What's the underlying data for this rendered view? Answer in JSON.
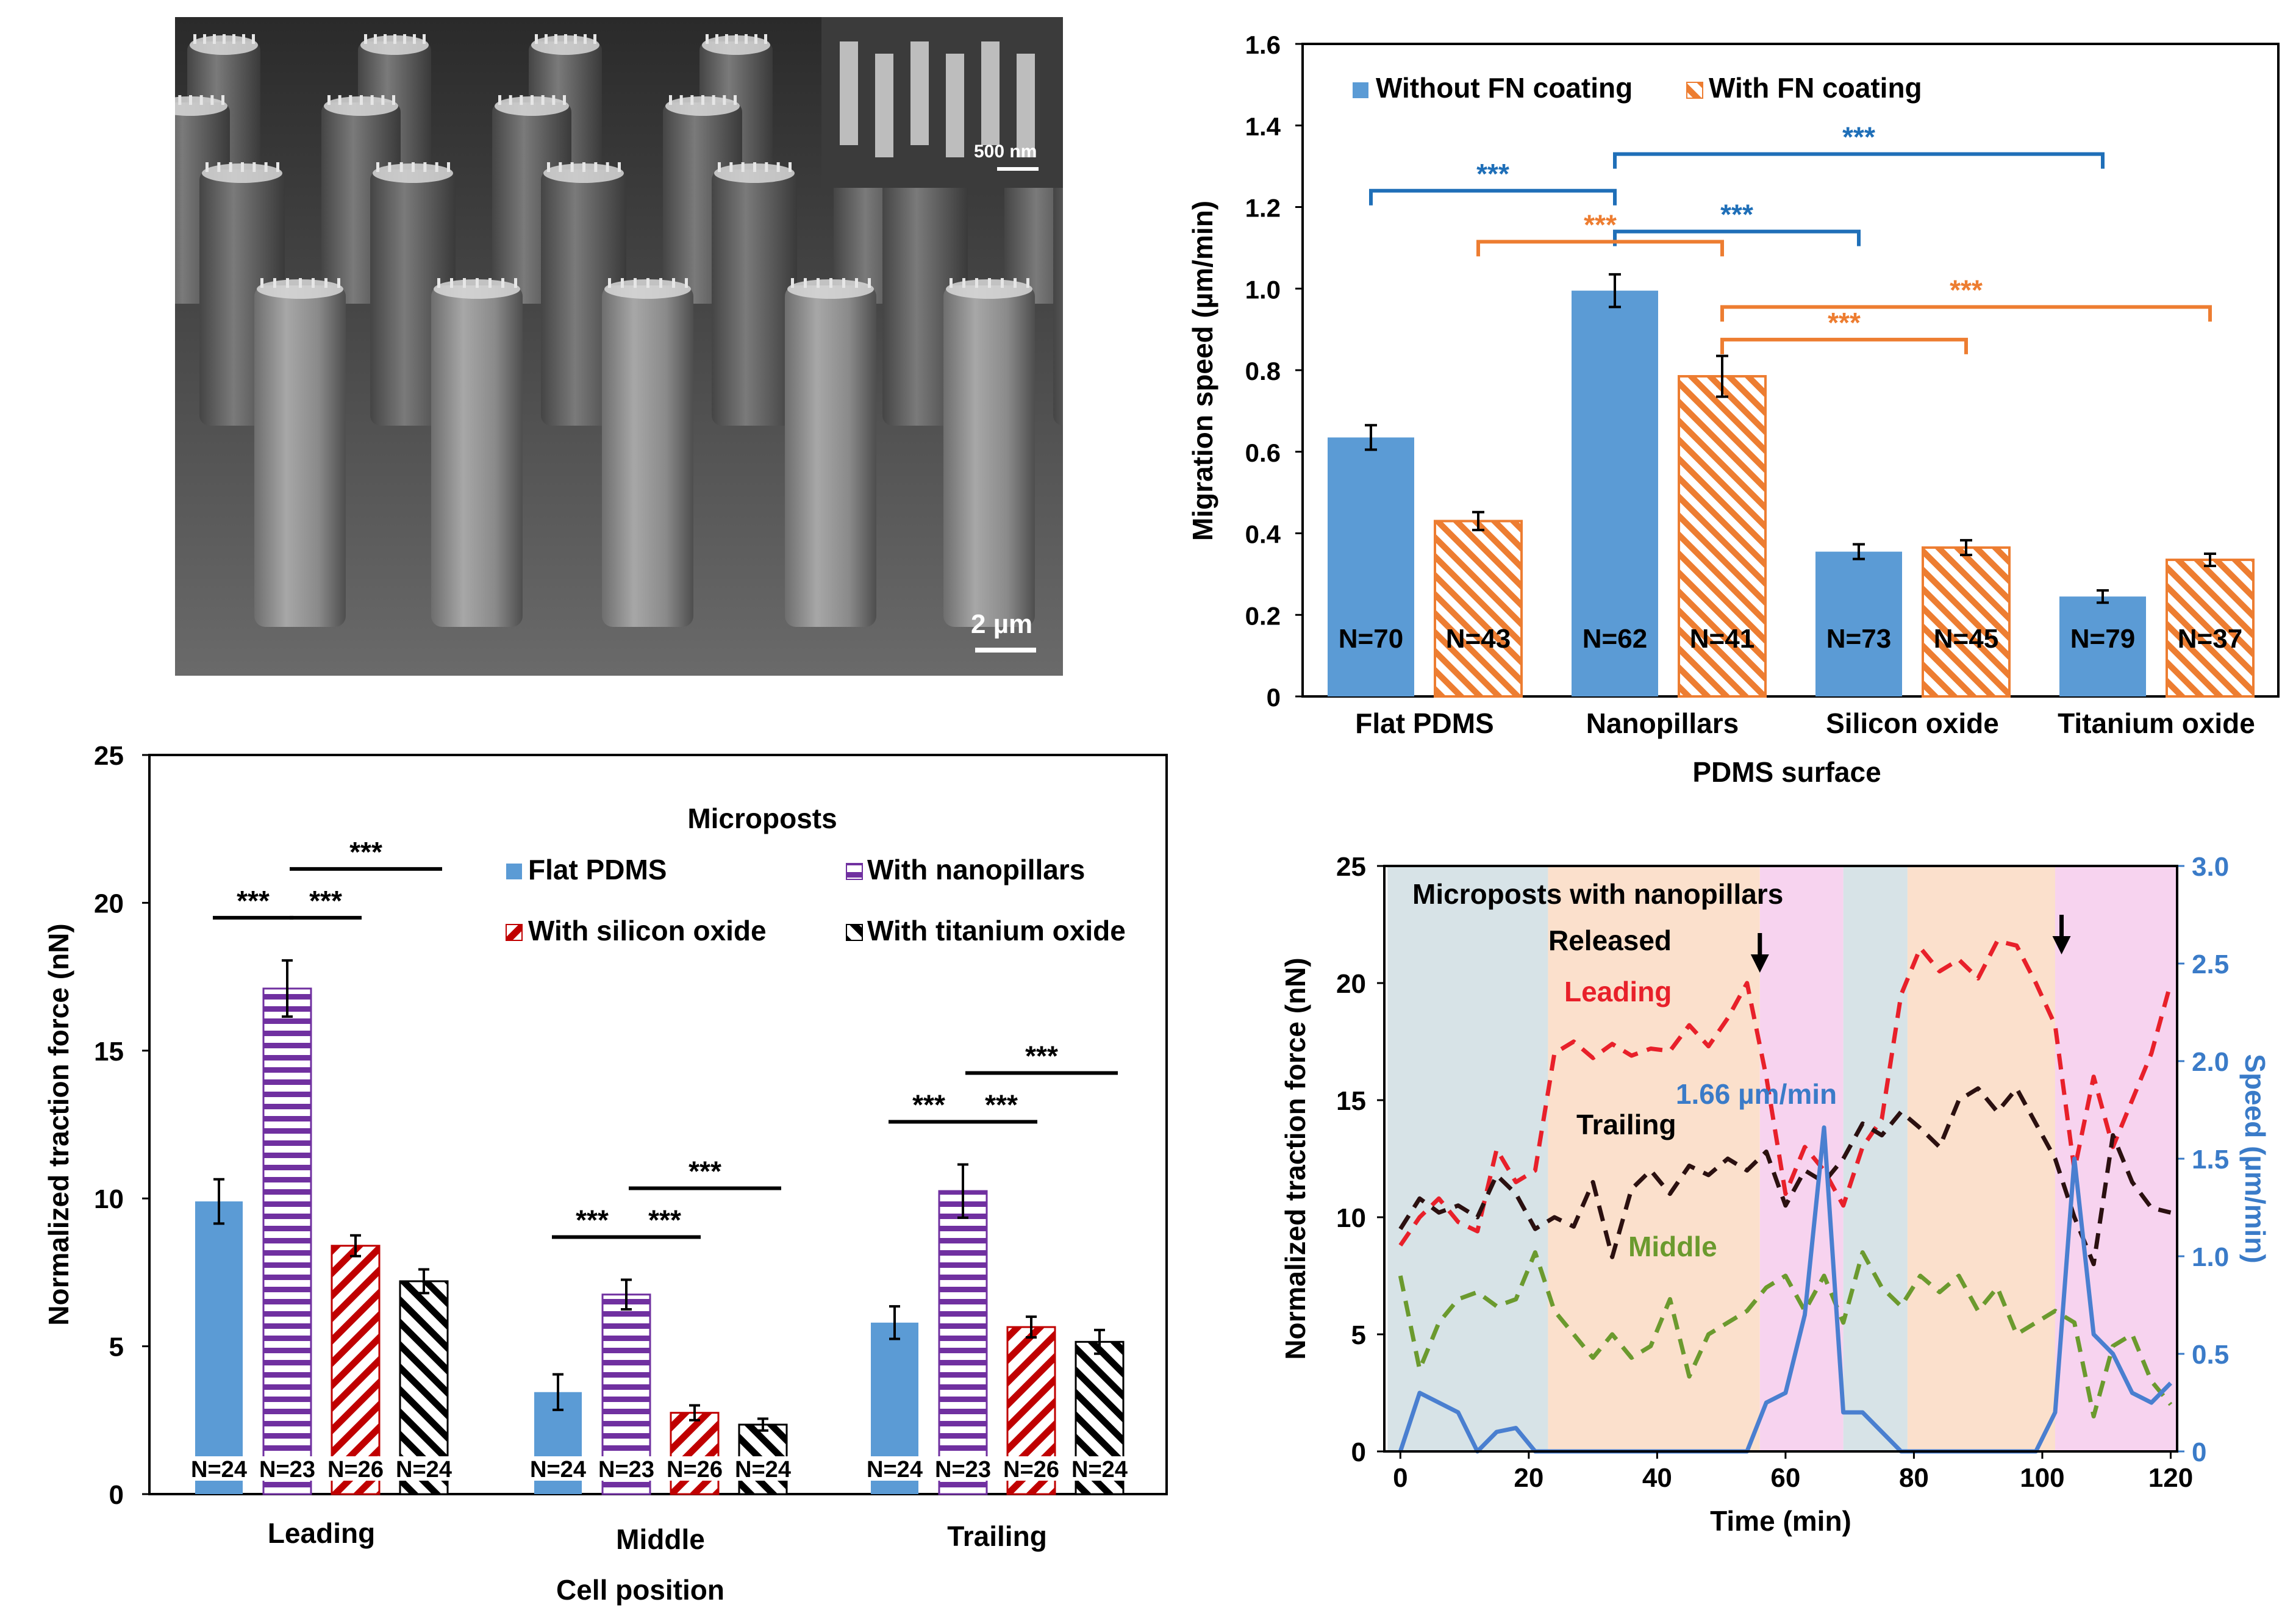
{
  "micrograph": {
    "scale_bar_main": "2 µm",
    "scale_bar_inset": "500 nm"
  },
  "chart_data": [
    {
      "id": "migration",
      "type": "bar",
      "title": "",
      "xlabel": "PDMS surface",
      "ylabel": "Migration speed (µm/min)",
      "ylim": [
        0,
        1.6
      ],
      "yticks": [
        0,
        0.2,
        0.4,
        0.6,
        0.8,
        1.0,
        1.2,
        1.4,
        1.6
      ],
      "ytick_labels": [
        "0",
        "0.2",
        "0.4",
        "0.6",
        "0.8",
        "1.0",
        "1.2",
        "1.4",
        "1.6"
      ],
      "categories": [
        "Flat PDMS",
        "Nanopillars",
        "Silicon oxide",
        "Titanium oxide"
      ],
      "series": [
        {
          "name": "Without FN coating",
          "color": "#5b9bd5",
          "pattern": "solid",
          "values": [
            0.635,
            0.995,
            0.355,
            0.245
          ],
          "errors": [
            0.03,
            0.04,
            0.018,
            0.015
          ],
          "n_labels": [
            "N=70",
            "N=62",
            "N=73",
            "N=79"
          ]
        },
        {
          "name": "With FN coating",
          "color": "#ed7d31",
          "pattern": "hatch",
          "values": [
            0.43,
            0.785,
            0.365,
            0.335
          ],
          "errors": [
            0.022,
            0.05,
            0.018,
            0.015
          ],
          "n_labels": [
            "N=43",
            "N=41",
            "N=45",
            "N=37"
          ]
        }
      ],
      "significance": [
        {
          "label": "***",
          "color": "#1f6fb8",
          "from": "Flat PDMS / Without FN coating",
          "to": "Nanopillars / Without FN coating"
        },
        {
          "label": "***",
          "color": "#1f6fb8",
          "from": "Nanopillars / Without FN coating",
          "to": "Silicon oxide / Without FN coating"
        },
        {
          "label": "***",
          "color": "#1f6fb8",
          "from": "Nanopillars / Without FN coating",
          "to": "Titanium oxide / Without FN coating"
        },
        {
          "label": "***",
          "color": "#ed7d31",
          "from": "Flat PDMS / With FN coating",
          "to": "Nanopillars / With FN coating"
        },
        {
          "label": "***",
          "color": "#ed7d31",
          "from": "Nanopillars / With FN coating",
          "to": "Silicon oxide / With FN coating"
        },
        {
          "label": "***",
          "color": "#ed7d31",
          "from": "Nanopillars / With FN coating",
          "to": "Titanium oxide / With FN coating"
        }
      ]
    },
    {
      "id": "traction",
      "type": "bar",
      "title": "",
      "legend_title": "Microposts",
      "xlabel": "Cell position",
      "ylabel": "Normalized traction force (nN)",
      "ylim": [
        0,
        25
      ],
      "yticks": [
        0,
        5,
        10,
        15,
        20,
        25
      ],
      "categories": [
        "Leading",
        "Middle",
        "Trailing"
      ],
      "series": [
        {
          "name": "Flat PDMS",
          "color": "#5b9bd5",
          "pattern": "solid",
          "values": [
            9.9,
            3.45,
            5.8
          ],
          "errors": [
            0.75,
            0.6,
            0.55
          ],
          "n_labels": [
            "N=24",
            "N=24",
            "N=24"
          ]
        },
        {
          "name": "With nanopillars",
          "color": "#7030a0",
          "pattern": "horizontal",
          "values": [
            17.1,
            6.75,
            10.25
          ],
          "errors": [
            0.95,
            0.5,
            0.9
          ],
          "n_labels": [
            "N=23",
            "N=23",
            "N=23"
          ]
        },
        {
          "name": "With silicon oxide",
          "color": "#c00000",
          "pattern": "diagonal",
          "values": [
            8.4,
            2.75,
            5.65
          ],
          "errors": [
            0.35,
            0.25,
            0.35
          ],
          "n_labels": [
            "N=26",
            "N=26",
            "N=26"
          ]
        },
        {
          "name": "With titanium oxide",
          "color": "#000000",
          "pattern": "diagonal-back",
          "values": [
            7.2,
            2.35,
            5.15
          ],
          "errors": [
            0.4,
            0.2,
            0.4
          ],
          "n_labels": [
            "N=24",
            "N=24",
            "N=24"
          ]
        }
      ],
      "significance": [
        {
          "label": "***",
          "pairs": "Flat PDMS vs With nanopillars (each position)"
        },
        {
          "label": "***",
          "pairs": "With nanopillars vs With silicon oxide (each position)"
        },
        {
          "label": "***",
          "pairs": "With nanopillars vs With titanium oxide (each position)"
        }
      ]
    },
    {
      "id": "timecourse",
      "type": "line",
      "title": "Microposts with nanopillars",
      "xlabel": "Time (min)",
      "ylabel": "Normalized traction force (nN)",
      "y2label": "Speed (µm/min)",
      "xlim": [
        0,
        120
      ],
      "xticks": [
        0,
        20,
        40,
        60,
        80,
        100,
        120
      ],
      "ylim": [
        0,
        25
      ],
      "yticks": [
        0,
        5,
        10,
        15,
        20,
        25
      ],
      "y2lim": [
        0,
        3.0
      ],
      "y2ticks": [
        0,
        0.5,
        1.0,
        1.5,
        2.0,
        2.5,
        3.0
      ],
      "y2tick_labels": [
        "0",
        "0.5",
        "1.0",
        "1.5",
        "2.0",
        "2.5",
        "3.0"
      ],
      "phases": [
        {
          "start": -2,
          "end": 23,
          "color": "#d7e3e7"
        },
        {
          "start": 23,
          "end": 56,
          "color": "#fbe0cc"
        },
        {
          "start": 56,
          "end": 69,
          "color": "#f7d3ef"
        },
        {
          "start": 69,
          "end": 79,
          "color": "#d7e3e7"
        },
        {
          "start": 79,
          "end": 102,
          "color": "#fbe0cc"
        },
        {
          "start": 102,
          "end": 121,
          "color": "#f7d3ef"
        }
      ],
      "annotations": {
        "released": "Released",
        "released_times": [
          56,
          103
        ],
        "peak_speed": "1.66 µm/min"
      },
      "series": [
        {
          "name": "Leading",
          "color": "#e8202a",
          "dashed": true,
          "axis": "left",
          "x": [
            0,
            3,
            6,
            9,
            12,
            15,
            18,
            21,
            24,
            27,
            30,
            33,
            36,
            39,
            42,
            45,
            48,
            51,
            54,
            57,
            60,
            63,
            66,
            69,
            72,
            75,
            78,
            81,
            84,
            87,
            90,
            93,
            96,
            99,
            102,
            105,
            108,
            111,
            114,
            117,
            120
          ],
          "y": [
            8.8,
            10.0,
            10.8,
            9.8,
            9.4,
            12.9,
            11.5,
            12.0,
            17.0,
            17.5,
            16.8,
            17.4,
            16.9,
            17.2,
            17.1,
            18.2,
            17.3,
            18.5,
            20.0,
            16.0,
            11.0,
            13.0,
            12.0,
            10.5,
            13.0,
            14.2,
            19.5,
            21.5,
            20.5,
            21.0,
            20.2,
            21.8,
            21.6,
            20.0,
            18.2,
            12.0,
            16.0,
            13.0,
            15.0,
            17.0,
            20.0
          ]
        },
        {
          "name": "Trailing",
          "color": "#2b1010",
          "dashed": true,
          "axis": "left",
          "x": [
            0,
            3,
            6,
            9,
            12,
            15,
            18,
            21,
            24,
            27,
            30,
            33,
            36,
            39,
            42,
            45,
            48,
            51,
            54,
            57,
            60,
            63,
            66,
            69,
            72,
            75,
            78,
            81,
            84,
            87,
            90,
            93,
            96,
            99,
            102,
            105,
            108,
            111,
            114,
            117,
            120
          ],
          "y": [
            9.5,
            10.8,
            10.2,
            10.5,
            10.0,
            11.8,
            11.0,
            9.5,
            10.0,
            9.6,
            11.5,
            8.3,
            11.2,
            12.0,
            11.0,
            12.2,
            11.8,
            12.5,
            12.0,
            12.8,
            10.5,
            12.0,
            11.5,
            12.5,
            14.0,
            13.5,
            14.5,
            13.8,
            13.0,
            15.0,
            15.5,
            14.5,
            15.5,
            14.0,
            12.5,
            10.0,
            8.0,
            13.5,
            11.5,
            10.4,
            10.2
          ]
        },
        {
          "name": "Middle",
          "color": "#6b9a2e",
          "dashed": true,
          "axis": "left",
          "x": [
            0,
            3,
            6,
            9,
            12,
            15,
            18,
            21,
            24,
            27,
            30,
            33,
            36,
            39,
            42,
            45,
            48,
            51,
            54,
            57,
            60,
            63,
            66,
            69,
            72,
            75,
            78,
            81,
            84,
            87,
            90,
            93,
            96,
            99,
            102,
            105,
            108,
            111,
            114,
            117,
            120
          ],
          "y": [
            7.5,
            3.5,
            5.5,
            6.5,
            6.8,
            6.2,
            6.5,
            8.5,
            6.0,
            5.0,
            4.0,
            5.0,
            4.0,
            4.5,
            6.5,
            3.2,
            5.0,
            5.5,
            6.0,
            7.0,
            7.5,
            6.0,
            7.5,
            5.5,
            8.5,
            7.0,
            6.2,
            7.5,
            6.8,
            7.5,
            6.0,
            7.0,
            5.0,
            5.5,
            6.0,
            5.5,
            1.5,
            4.5,
            5.0,
            3.0,
            2.0
          ]
        },
        {
          "name": "Speed",
          "color": "#4a7fd0",
          "dashed": false,
          "axis": "right",
          "x": [
            0,
            3,
            6,
            9,
            12,
            15,
            18,
            21,
            24,
            27,
            30,
            33,
            36,
            39,
            42,
            45,
            48,
            51,
            54,
            57,
            60,
            63,
            66,
            69,
            72,
            75,
            78,
            81,
            84,
            87,
            90,
            93,
            96,
            99,
            102,
            105,
            108,
            111,
            114,
            117,
            120
          ],
          "y": [
            0,
            0.3,
            0.25,
            0.2,
            0,
            0.1,
            0.12,
            0,
            0,
            0,
            0,
            0,
            0,
            0,
            0,
            0,
            0,
            0,
            0,
            0.25,
            0.3,
            0.7,
            1.66,
            0.2,
            0.2,
            0.1,
            0,
            0,
            0,
            0,
            0,
            0,
            0,
            0,
            0.2,
            1.5,
            0.6,
            0.5,
            0.3,
            0.25,
            0.35
          ]
        }
      ]
    }
  ]
}
